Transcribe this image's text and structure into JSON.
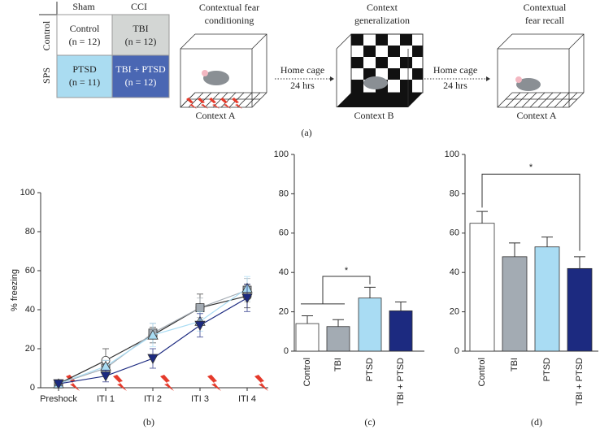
{
  "diagram": {
    "table": {
      "columns": [
        "Sham",
        "CCI"
      ],
      "rows": [
        "Control",
        "SPS"
      ],
      "cells": [
        [
          [
            "Control",
            "(n = 12)"
          ],
          [
            "TBI",
            "(n = 12)"
          ]
        ],
        [
          [
            "PTSD",
            "(n = 11)"
          ],
          [
            "TBI + PTSD",
            "(n = 12)"
          ]
        ]
      ]
    },
    "stages": [
      {
        "title": [
          "Contextual fear",
          "conditioning"
        ],
        "context": "Context A"
      },
      {
        "title": [
          "Context",
          "generalization"
        ],
        "context": "Context B"
      },
      {
        "title": [
          "Contextual",
          "fear recall"
        ],
        "context": "Context A"
      }
    ],
    "transitions": [
      {
        "label": "Home cage",
        "duration": "24 hrs"
      },
      {
        "label": "Home cage",
        "duration": "24 hrs"
      }
    ],
    "caption": "(a)"
  },
  "chart_data": [
    {
      "type": "line",
      "caption": "(b)",
      "y_label": "% freezing",
      "categories": [
        "Preshock",
        "ITI 1",
        "ITI 2",
        "ITI 3",
        "ITI 4"
      ],
      "ylim": [
        0,
        100
      ],
      "yticks": [
        0,
        20,
        40,
        60,
        80,
        100
      ],
      "series": [
        {
          "color": "#ffffff",
          "marker": "circle",
          "values": [
            2,
            14,
            27,
            41,
            47
          ],
          "errors": [
            1,
            6,
            4,
            7,
            6
          ]
        },
        {
          "color": "#a3abb3",
          "marker": "square",
          "values": [
            2,
            10,
            28,
            41,
            50
          ],
          "errors": [
            1,
            4,
            5,
            5,
            6
          ]
        },
        {
          "color": "#a9dcf3",
          "marker": "triangle",
          "values": [
            2,
            11,
            27,
            34,
            51
          ],
          "errors": [
            1,
            3,
            6,
            5,
            6
          ]
        },
        {
          "color": "#1c2a80",
          "marker": "triangle-down",
          "values": [
            2,
            6,
            15,
            32,
            46
          ],
          "errors": [
            1,
            3,
            5,
            6,
            7
          ]
        }
      ]
    },
    {
      "type": "bar",
      "caption": "(c)",
      "categories": [
        "Control",
        "TBI",
        "PTSD",
        "TBI + PTSD"
      ],
      "values": [
        14,
        12.5,
        27,
        20.5
      ],
      "errors": [
        4,
        3.5,
        5.5,
        4.5
      ],
      "colors": [
        "#ffffff",
        "#a3abb3",
        "#a9dcf3",
        "#1c2a80"
      ],
      "ylim": [
        0,
        100
      ],
      "yticks": [
        0,
        20,
        40,
        60,
        80,
        100
      ],
      "significance": "*"
    },
    {
      "type": "bar",
      "caption": "(d)",
      "categories": [
        "Control",
        "TBI",
        "PTSD",
        "TBI + PTSD"
      ],
      "values": [
        65,
        48,
        53,
        42
      ],
      "errors": [
        6,
        7,
        5,
        6
      ],
      "colors": [
        "#ffffff",
        "#a3abb3",
        "#a9dcf3",
        "#1c2a80"
      ],
      "ylim": [
        0,
        100
      ],
      "yticks": [
        0,
        20,
        40,
        60,
        80,
        100
      ],
      "significance": "*"
    }
  ]
}
